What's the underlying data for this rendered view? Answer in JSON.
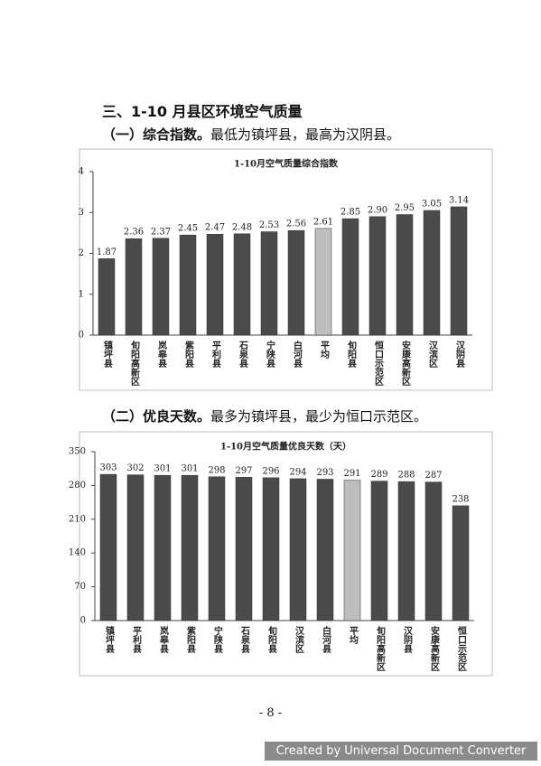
{
  "section_title": "三、1-10 月县区环境空气质量",
  "subsection_1": {
    "lead": "（一）综合指数。",
    "text": "最低为镇坪县，最高为汉阴县。"
  },
  "subsection_2": {
    "lead": "（二）优良天数。",
    "text": "最多为镇坪县，最少为恒口示范区。"
  },
  "page_number": "- 8 -",
  "watermark": "Created by Universal Document Converter",
  "chart_data": [
    {
      "type": "bar",
      "title": "1-10月空气质量综合指数",
      "categories": [
        "镇坪县",
        "旬阳高新区",
        "岚皋县",
        "紫阳县",
        "平利县",
        "石泉县",
        "宁陕县",
        "白河县",
        "平均",
        "旬阳县",
        "恒口示范区",
        "安康高新区",
        "汉滨区",
        "汉阴县"
      ],
      "values": [
        1.87,
        2.36,
        2.37,
        2.45,
        2.47,
        2.48,
        2.53,
        2.56,
        2.61,
        2.85,
        2.9,
        2.95,
        3.05,
        3.14
      ],
      "value_labels": [
        "1.87",
        "2.36",
        "2.37",
        "2.45",
        "2.47",
        "2.48",
        "2.53",
        "2.56",
        "2.61",
        "2.85",
        "2.90",
        "2.95",
        "3.05",
        "3.14"
      ],
      "colors": [
        "#4a4a4a",
        "#4a4a4a",
        "#4a4a4a",
        "#4a4a4a",
        "#4a4a4a",
        "#4a4a4a",
        "#4a4a4a",
        "#4a4a4a",
        "#bdbdbd",
        "#4a4a4a",
        "#4a4a4a",
        "#4a4a4a",
        "#4a4a4a",
        "#4a4a4a"
      ],
      "ylim": [
        0,
        4
      ],
      "yticks": [
        0,
        1,
        2,
        3,
        4
      ]
    },
    {
      "type": "bar",
      "title": "1-10月空气质量优良天数（天）",
      "categories": [
        "镇坪县",
        "平利县",
        "岚皋县",
        "紫阳县",
        "宁陕县",
        "石泉县",
        "旬阳县",
        "汉滨区",
        "白河县",
        "平均",
        "旬阳高新区",
        "汉阴县",
        "安康高新区",
        "恒口示范区"
      ],
      "values": [
        303,
        302,
        301,
        301,
        298,
        297,
        296,
        294,
        293,
        291,
        289,
        288,
        287,
        238
      ],
      "colors": [
        "#4a4a4a",
        "#4a4a4a",
        "#4a4a4a",
        "#4a4a4a",
        "#4a4a4a",
        "#4a4a4a",
        "#4a4a4a",
        "#4a4a4a",
        "#4a4a4a",
        "#bdbdbd",
        "#4a4a4a",
        "#4a4a4a",
        "#4a4a4a",
        "#4a4a4a"
      ],
      "ylim": [
        0,
        350
      ],
      "yticks": [
        0,
        70,
        140,
        210,
        280,
        350
      ]
    }
  ]
}
